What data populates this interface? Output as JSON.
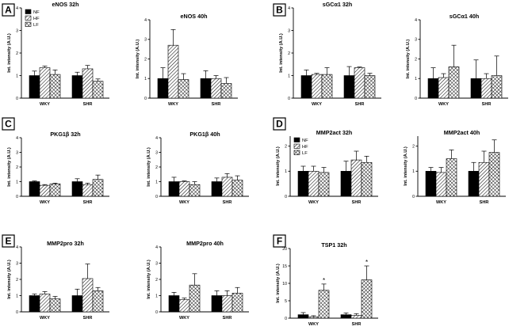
{
  "colors": {
    "ink": "#000000",
    "background": "#ffffff"
  },
  "legend": {
    "entries": [
      {
        "key": "NF",
        "label": "NF",
        "fill": "solid-black"
      },
      {
        "key": "HF",
        "label": "HF",
        "fill": "diagonal-hatch"
      },
      {
        "key": "LF",
        "label": "LF",
        "fill": "crosshatch"
      }
    ]
  },
  "panels": [
    {
      "letter": "A",
      "charts": [
        0,
        1
      ]
    },
    {
      "letter": "B",
      "charts": [
        2,
        3
      ]
    },
    {
      "letter": "C",
      "charts": [
        4,
        5
      ]
    },
    {
      "letter": "D",
      "charts": [
        6,
        7
      ]
    },
    {
      "letter": "E",
      "charts": [
        8,
        9
      ]
    },
    {
      "letter": "F",
      "charts": [
        10
      ]
    }
  ],
  "chart_data": [
    {
      "type": "bar",
      "title": "eNOS 32h",
      "ylabel": "Int. intensity (A.U.)",
      "categories": [
        "WKY",
        "SHR"
      ],
      "ylim": [
        0,
        4
      ],
      "yticks": [
        0,
        1,
        2,
        3,
        4
      ],
      "legend": "top-left",
      "series": [
        {
          "name": "NF",
          "values": [
            1.0,
            1.0
          ],
          "errors": [
            0.2,
            0.15
          ]
        },
        {
          "name": "HF",
          "values": [
            1.35,
            1.3
          ],
          "errors": [
            0.07,
            0.15
          ]
        },
        {
          "name": "LF",
          "values": [
            1.05,
            0.75
          ],
          "errors": [
            0.2,
            0.1
          ]
        }
      ]
    },
    {
      "type": "bar",
      "title": "eNOS 40h",
      "ylabel": "Int. intensity (A.U.)",
      "categories": [
        "WKY",
        "SHR"
      ],
      "ylim": [
        0,
        4
      ],
      "yticks": [
        0,
        1,
        2,
        3,
        4
      ],
      "legend": "none",
      "series": [
        {
          "name": "NF",
          "values": [
            1.0,
            1.0
          ],
          "errors": [
            0.55,
            0.4
          ]
        },
        {
          "name": "HF",
          "values": [
            2.7,
            1.0
          ],
          "errors": [
            0.8,
            0.15
          ]
        },
        {
          "name": "LF",
          "values": [
            0.95,
            0.75
          ],
          "errors": [
            0.3,
            0.3
          ]
        }
      ]
    },
    {
      "type": "bar",
      "title": "sGCα1 32h",
      "ylabel": "Int. intensity (A.U.)",
      "categories": [
        "WKY",
        "SHR"
      ],
      "ylim": [
        0,
        4
      ],
      "yticks": [
        0,
        1,
        2,
        3,
        4
      ],
      "legend": "none",
      "series": [
        {
          "name": "NF",
          "values": [
            1.0,
            1.0
          ],
          "errors": [
            0.25,
            0.4
          ]
        },
        {
          "name": "HF",
          "values": [
            1.05,
            1.35
          ],
          "errors": [
            0.05,
            0.03
          ]
        },
        {
          "name": "LF",
          "values": [
            1.05,
            1.0
          ],
          "errors": [
            0.3,
            0.1
          ]
        }
      ]
    },
    {
      "type": "bar",
      "title": "sGCα1 40h",
      "ylabel": "Int. intensity (A.U.)",
      "categories": [
        "WKY",
        "SHR"
      ],
      "ylim": [
        0,
        4
      ],
      "yticks": [
        0,
        1,
        2,
        3,
        4
      ],
      "legend": "none",
      "series": [
        {
          "name": "NF",
          "values": [
            1.0,
            1.0
          ],
          "errors": [
            0.55,
            0.95
          ]
        },
        {
          "name": "HF",
          "values": [
            1.05,
            1.0
          ],
          "errors": [
            0.2,
            0.25
          ]
        },
        {
          "name": "LF",
          "values": [
            1.6,
            1.15
          ],
          "errors": [
            1.1,
            1.0
          ]
        }
      ]
    },
    {
      "type": "bar",
      "title": "PKG1β 32h",
      "ylabel": "Int. intensity (A.U.)",
      "categories": [
        "WKY",
        "SHR"
      ],
      "ylim": [
        0,
        4
      ],
      "yticks": [
        0,
        1,
        2,
        3,
        4
      ],
      "legend": "none",
      "series": [
        {
          "name": "NF",
          "values": [
            1.0,
            1.0
          ],
          "errors": [
            0.05,
            0.2
          ]
        },
        {
          "name": "HF",
          "values": [
            0.75,
            0.8
          ],
          "errors": [
            0.05,
            0.1
          ]
        },
        {
          "name": "LF",
          "values": [
            0.85,
            1.15
          ],
          "errors": [
            0.05,
            0.3
          ]
        }
      ]
    },
    {
      "type": "bar",
      "title": "PKG1β 40h",
      "ylabel": "Int. intensity (A.U.)",
      "categories": [
        "WKY",
        "SHR"
      ],
      "ylim": [
        0,
        4
      ],
      "yticks": [
        0,
        1,
        2,
        3,
        4
      ],
      "legend": "none",
      "series": [
        {
          "name": "NF",
          "values": [
            1.0,
            1.0
          ],
          "errors": [
            0.3,
            0.25
          ]
        },
        {
          "name": "HF",
          "values": [
            1.0,
            1.3
          ],
          "errors": [
            0.05,
            0.25
          ]
        },
        {
          "name": "LF",
          "values": [
            0.8,
            1.1
          ],
          "errors": [
            0.2,
            0.3
          ]
        }
      ]
    },
    {
      "type": "bar",
      "title": "MMP2act 32h",
      "ylabel": "Int. intensity (A.U.)",
      "categories": [
        "WKY",
        "SHR"
      ],
      "ylim": [
        0,
        2.4
      ],
      "yticks": [
        0,
        1,
        2
      ],
      "legend": "top-left",
      "series": [
        {
          "name": "NF",
          "values": [
            1.0,
            1.0
          ],
          "errors": [
            0.2,
            0.4
          ]
        },
        {
          "name": "HF",
          "values": [
            1.0,
            1.45
          ],
          "errors": [
            0.2,
            0.35
          ]
        },
        {
          "name": "LF",
          "values": [
            0.95,
            1.35
          ],
          "errors": [
            0.2,
            0.25
          ]
        }
      ]
    },
    {
      "type": "bar",
      "title": "MMP2act 40h",
      "ylabel": "Int. intensity (A.U.)",
      "categories": [
        "WKY",
        "SHR"
      ],
      "ylim": [
        0,
        2.4
      ],
      "yticks": [
        0,
        1,
        2
      ],
      "legend": "none",
      "series": [
        {
          "name": "NF",
          "values": [
            1.0,
            1.0
          ],
          "errors": [
            0.15,
            0.35
          ]
        },
        {
          "name": "HF",
          "values": [
            0.95,
            1.35
          ],
          "errors": [
            0.2,
            0.45
          ]
        },
        {
          "name": "LF",
          "values": [
            1.5,
            1.75
          ],
          "errors": [
            0.35,
            0.5
          ]
        }
      ]
    },
    {
      "type": "bar",
      "title": "MMP2pro 32h",
      "ylabel": "Int. intensity (A.U.)",
      "categories": [
        "WKY",
        "SHR"
      ],
      "ylim": [
        0,
        4
      ],
      "yticks": [
        0,
        1,
        2,
        3,
        4
      ],
      "legend": "none",
      "series": [
        {
          "name": "NF",
          "values": [
            1.0,
            1.0
          ],
          "errors": [
            0.1,
            0.4
          ]
        },
        {
          "name": "HF",
          "values": [
            1.1,
            2.05
          ],
          "errors": [
            0.15,
            0.9
          ]
        },
        {
          "name": "LF",
          "values": [
            0.8,
            1.3
          ],
          "errors": [
            0.15,
            0.2
          ]
        }
      ]
    },
    {
      "type": "bar",
      "title": "MMP2pro 40h",
      "ylabel": "Int. intensity (A.U.)",
      "categories": [
        "WKY",
        "SHR"
      ],
      "ylim": [
        0,
        4
      ],
      "yticks": [
        0,
        1,
        2,
        3,
        4
      ],
      "legend": "none",
      "series": [
        {
          "name": "NF",
          "values": [
            1.0,
            1.0
          ],
          "errors": [
            0.2,
            0.3
          ]
        },
        {
          "name": "HF",
          "values": [
            0.75,
            1.0
          ],
          "errors": [
            0.1,
            0.3
          ]
        },
        {
          "name": "LF",
          "values": [
            1.65,
            1.15
          ],
          "errors": [
            0.7,
            0.35
          ]
        }
      ]
    },
    {
      "type": "bar",
      "title": "TSP1 32h",
      "ylabel": "Int. intensity (A.U.)",
      "categories": [
        "WKY",
        "SHR"
      ],
      "ylim": [
        0,
        20
      ],
      "yticks": [
        0,
        5,
        10,
        15,
        20
      ],
      "legend": "none",
      "series": [
        {
          "name": "NF",
          "values": [
            1.0,
            1.0
          ],
          "errors": [
            0.6,
            0.5
          ]
        },
        {
          "name": "HF",
          "values": [
            0.4,
            0.8
          ],
          "errors": [
            0.3,
            0.5
          ]
        },
        {
          "name": "LF",
          "values": [
            8.0,
            11.0
          ],
          "errors": [
            1.8,
            4.0
          ]
        }
      ],
      "annotations": [
        {
          "category": "WKY",
          "series": "LF",
          "text": "*"
        },
        {
          "category": "SHR",
          "series": "LF",
          "text": "*"
        }
      ]
    }
  ]
}
